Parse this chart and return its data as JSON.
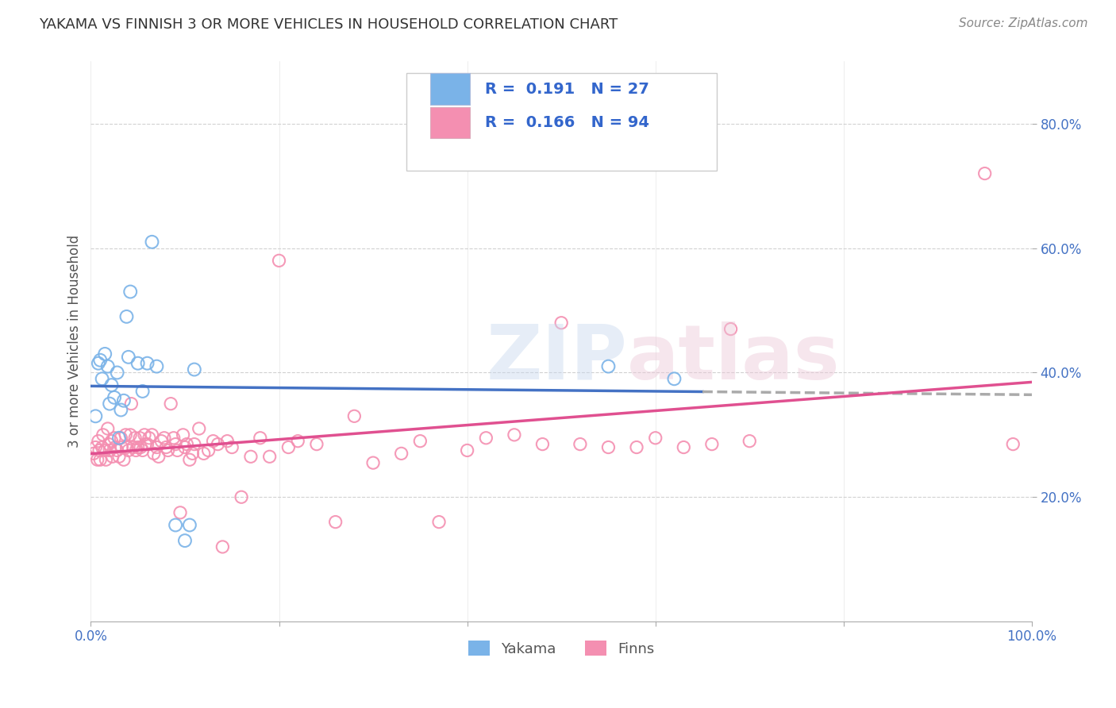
{
  "title": "YAKAMA VS FINNISH 3 OR MORE VEHICLES IN HOUSEHOLD CORRELATION CHART",
  "source": "Source: ZipAtlas.com",
  "ylabel": "3 or more Vehicles in Household",
  "legend_yakama": {
    "R": 0.191,
    "N": 27
  },
  "legend_finns": {
    "R": 0.166,
    "N": 94
  },
  "yakama_color": "#7ab3e8",
  "finns_color": "#f48fb1",
  "yakama_line_color": "#4472c4",
  "finns_line_color": "#e05090",
  "trend_extension_color": "#aaaaaa",
  "background_color": "#ffffff",
  "grid_color": "#cccccc",
  "title_color": "#333333",
  "axis_label_color": "#555555",
  "legend_text_color": "#3366cc",
  "xlim": [
    0.0,
    1.0
  ],
  "ylim": [
    0.0,
    0.9
  ],
  "yticks": [
    0.2,
    0.4,
    0.6,
    0.8
  ],
  "ytick_labels": [
    "20.0%",
    "40.0%",
    "60.0%",
    "80.0%"
  ],
  "yakama_x": [
    0.005,
    0.008,
    0.01,
    0.012,
    0.015,
    0.018,
    0.02,
    0.022,
    0.025,
    0.028,
    0.03,
    0.032,
    0.035,
    0.038,
    0.04,
    0.042,
    0.05,
    0.055,
    0.06,
    0.065,
    0.07,
    0.09,
    0.1,
    0.105,
    0.11,
    0.55,
    0.62
  ],
  "yakama_y": [
    0.33,
    0.415,
    0.42,
    0.39,
    0.43,
    0.41,
    0.35,
    0.38,
    0.36,
    0.4,
    0.295,
    0.34,
    0.355,
    0.49,
    0.425,
    0.53,
    0.415,
    0.37,
    0.415,
    0.61,
    0.41,
    0.155,
    0.13,
    0.155,
    0.405,
    0.41,
    0.39
  ],
  "finns_x": [
    0.003,
    0.005,
    0.007,
    0.008,
    0.009,
    0.01,
    0.012,
    0.013,
    0.015,
    0.016,
    0.018,
    0.019,
    0.02,
    0.022,
    0.023,
    0.025,
    0.026,
    0.028,
    0.03,
    0.032,
    0.033,
    0.035,
    0.037,
    0.038,
    0.04,
    0.042,
    0.043,
    0.045,
    0.047,
    0.048,
    0.05,
    0.052,
    0.053,
    0.055,
    0.057,
    0.058,
    0.06,
    0.062,
    0.065,
    0.067,
    0.07,
    0.072,
    0.075,
    0.078,
    0.08,
    0.082,
    0.085,
    0.088,
    0.09,
    0.092,
    0.095,
    0.098,
    0.1,
    0.102,
    0.105,
    0.108,
    0.11,
    0.115,
    0.12,
    0.125,
    0.13,
    0.135,
    0.14,
    0.145,
    0.15,
    0.16,
    0.17,
    0.18,
    0.19,
    0.2,
    0.21,
    0.22,
    0.24,
    0.26,
    0.28,
    0.3,
    0.33,
    0.35,
    0.37,
    0.4,
    0.42,
    0.45,
    0.48,
    0.5,
    0.52,
    0.55,
    0.58,
    0.6,
    0.63,
    0.66,
    0.68,
    0.7,
    0.95,
    0.98
  ],
  "finns_y": [
    0.27,
    0.28,
    0.26,
    0.29,
    0.275,
    0.26,
    0.28,
    0.3,
    0.275,
    0.26,
    0.31,
    0.285,
    0.275,
    0.29,
    0.265,
    0.295,
    0.28,
    0.275,
    0.265,
    0.295,
    0.28,
    0.26,
    0.3,
    0.28,
    0.275,
    0.3,
    0.35,
    0.28,
    0.295,
    0.275,
    0.28,
    0.295,
    0.28,
    0.275,
    0.3,
    0.285,
    0.285,
    0.295,
    0.3,
    0.27,
    0.28,
    0.265,
    0.29,
    0.295,
    0.28,
    0.275,
    0.35,
    0.295,
    0.285,
    0.275,
    0.175,
    0.3,
    0.28,
    0.285,
    0.26,
    0.27,
    0.285,
    0.31,
    0.27,
    0.275,
    0.29,
    0.285,
    0.12,
    0.29,
    0.28,
    0.2,
    0.265,
    0.295,
    0.265,
    0.58,
    0.28,
    0.29,
    0.285,
    0.16,
    0.33,
    0.255,
    0.27,
    0.29,
    0.16,
    0.275,
    0.295,
    0.3,
    0.285,
    0.48,
    0.285,
    0.28,
    0.28,
    0.295,
    0.28,
    0.285,
    0.47,
    0.29,
    0.72,
    0.285
  ]
}
